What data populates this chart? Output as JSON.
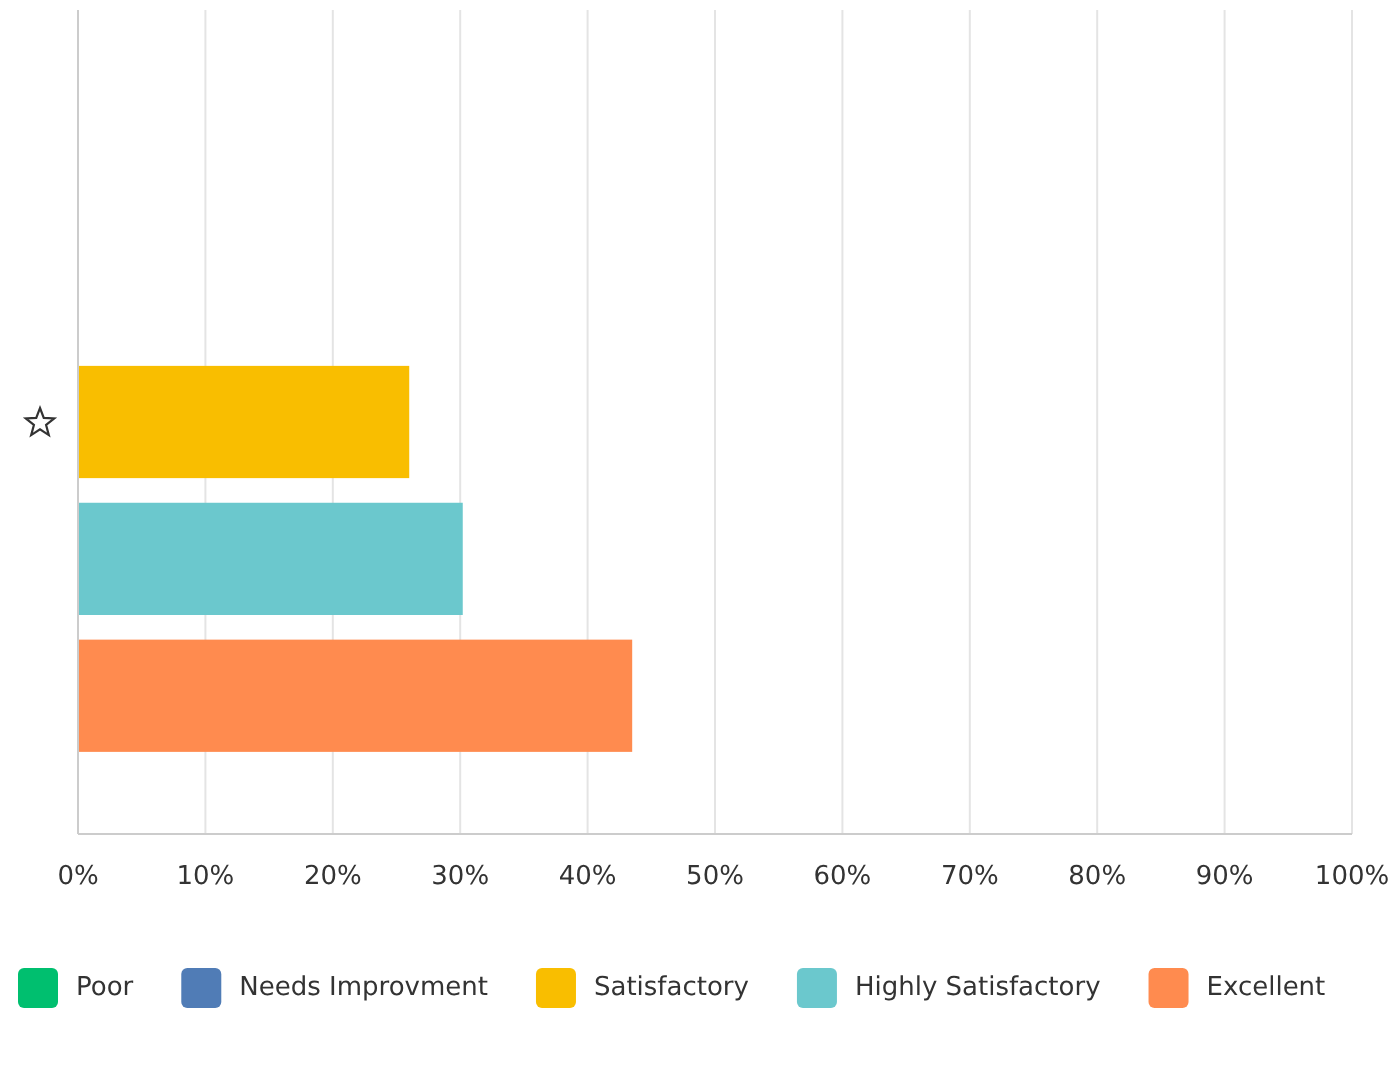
{
  "chart_data": {
    "type": "bar",
    "orientation": "horizontal",
    "categories": [
      null
    ],
    "series": [
      {
        "name": "Poor",
        "color": "#00bf6f",
        "values": [
          0
        ]
      },
      {
        "name": "Needs Improvment",
        "color": "#507cb6",
        "values": [
          0
        ]
      },
      {
        "name": "Satisfactory",
        "color": "#f9be00",
        "values": [
          26
        ]
      },
      {
        "name": "Highly Satisfactory",
        "color": "#6bc8cd",
        "values": [
          30.2
        ]
      },
      {
        "name": "Excellent",
        "color": "#ff8b4f",
        "values": [
          43.5
        ]
      }
    ],
    "xlim": [
      0,
      100
    ],
    "xticks": [
      {
        "value": 0,
        "label": "0%"
      },
      {
        "value": 10,
        "label": "10%"
      },
      {
        "value": 20,
        "label": "20%"
      },
      {
        "value": 30,
        "label": "30%"
      },
      {
        "value": 40,
        "label": "40%"
      },
      {
        "value": 50,
        "label": "50%"
      },
      {
        "value": 60,
        "label": "60%"
      },
      {
        "value": 70,
        "label": "70%"
      },
      {
        "value": 80,
        "label": "80%"
      },
      {
        "value": 90,
        "label": "90%"
      },
      {
        "value": 100,
        "label": "100%"
      }
    ],
    "grid": "x",
    "legend": "bottom"
  }
}
